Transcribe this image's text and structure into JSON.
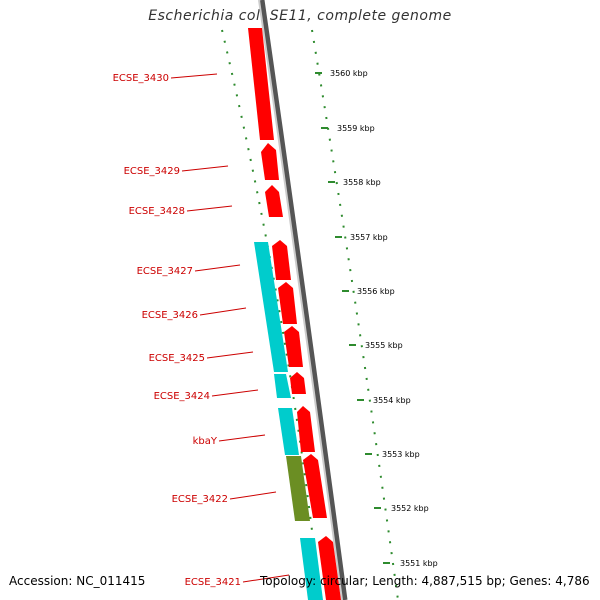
{
  "title": "Escherichia coli SE11, complete genome",
  "accession": "Accession: NC_011415",
  "topology": "Topology: circular; Length: 4,887,515 bp; Genes: 4,786",
  "colors": {
    "forward_cds": "#ff0000",
    "reverse_cds": "#00cccc",
    "other_feature": "#6b8e23",
    "backbone": "#888888",
    "label": "#cc0000",
    "tick": "#2e8b2e"
  },
  "gene_labels": [
    "ECSE_3430",
    "ECSE_3429",
    "ECSE_3428",
    "ECSE_3427",
    "ECSE_3426",
    "ECSE_3425",
    "ECSE_3424",
    "kbaY",
    "ECSE_3422",
    "ECSE_3421"
  ],
  "kbp_labels": [
    "3560 kbp",
    "3559 kbp",
    "3558 kbp",
    "3557 kbp",
    "3556 kbp",
    "3555 kbp",
    "3554 kbp",
    "3553 kbp",
    "3552 kbp",
    "3551 kbp"
  ]
}
